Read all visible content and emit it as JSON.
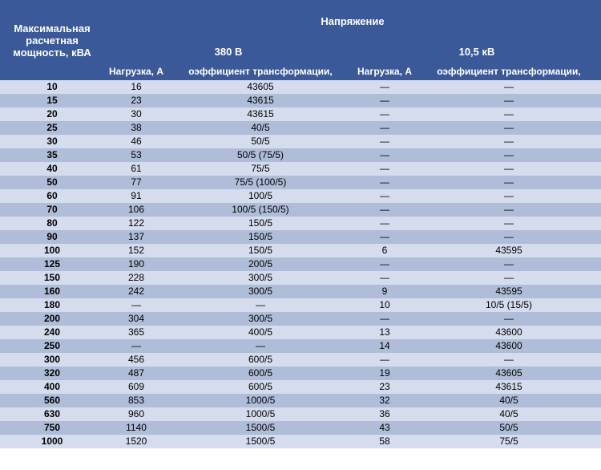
{
  "headers": {
    "power": "Максимальная расчетная мощность, кВА",
    "voltage": "Напряжение",
    "v380": "380 В",
    "v10_5": "10,5 кВ",
    "load": "Нагрузка, А",
    "coef": "оэффициент трансформации,"
  },
  "colors": {
    "header_bg": "#3b5998",
    "header_text": "#ffffff",
    "row_light": "#d4dced",
    "row_dark": "#b0bdd9",
    "text": "#000000"
  },
  "rows": [
    {
      "power": "10",
      "load380": "16",
      "coef380": "43605",
      "load10": "—",
      "coef10": "—"
    },
    {
      "power": "15",
      "load380": "23",
      "coef380": "43615",
      "load10": "—",
      "coef10": "—"
    },
    {
      "power": "20",
      "load380": "30",
      "coef380": "43615",
      "load10": "—",
      "coef10": "—"
    },
    {
      "power": "25",
      "load380": "38",
      "coef380": "40/5",
      "load10": "—",
      "coef10": "—"
    },
    {
      "power": "30",
      "load380": "46",
      "coef380": "50/5",
      "load10": "—",
      "coef10": "—"
    },
    {
      "power": "35",
      "load380": "53",
      "coef380": "50/5 (75/5)",
      "load10": "—",
      "coef10": "—"
    },
    {
      "power": "40",
      "load380": "61",
      "coef380": "75/5",
      "load10": "—",
      "coef10": "—"
    },
    {
      "power": "50",
      "load380": "77",
      "coef380": "75/5 (100/5)",
      "load10": "—",
      "coef10": "—"
    },
    {
      "power": "60",
      "load380": "91",
      "coef380": "100/5",
      "load10": "—",
      "coef10": "—"
    },
    {
      "power": "70",
      "load380": "106",
      "coef380": "100/5 (150/5)",
      "load10": "—",
      "coef10": "—"
    },
    {
      "power": "80",
      "load380": "122",
      "coef380": "150/5",
      "load10": "—",
      "coef10": "—"
    },
    {
      "power": "90",
      "load380": "137",
      "coef380": "150/5",
      "load10": "—",
      "coef10": "—"
    },
    {
      "power": "100",
      "load380": "152",
      "coef380": "150/5",
      "load10": "6",
      "coef10": "43595"
    },
    {
      "power": "125",
      "load380": "190",
      "coef380": "200/5",
      "load10": "—",
      "coef10": "—"
    },
    {
      "power": "150",
      "load380": "228",
      "coef380": "300/5",
      "load10": "—",
      "coef10": "—"
    },
    {
      "power": "160",
      "load380": "242",
      "coef380": "300/5",
      "load10": "9",
      "coef10": "43595"
    },
    {
      "power": "180",
      "load380": "—",
      "coef380": "—",
      "load10": "10",
      "coef10": "10/5 (15/5)"
    },
    {
      "power": "200",
      "load380": "304",
      "coef380": "300/5",
      "load10": "—",
      "coef10": "—"
    },
    {
      "power": "240",
      "load380": "365",
      "coef380": "400/5",
      "load10": "13",
      "coef10": "43600"
    },
    {
      "power": "250",
      "load380": "—",
      "coef380": "—",
      "load10": "14",
      "coef10": "43600"
    },
    {
      "power": "300",
      "load380": "456",
      "coef380": "600/5",
      "load10": "—",
      "coef10": "—"
    },
    {
      "power": "320",
      "load380": "487",
      "coef380": "600/5",
      "load10": "19",
      "coef10": "43605"
    },
    {
      "power": "400",
      "load380": "609",
      "coef380": "600/5",
      "load10": "23",
      "coef10": "43615"
    },
    {
      "power": "560",
      "load380": "853",
      "coef380": "1000/5",
      "load10": "32",
      "coef10": "40/5"
    },
    {
      "power": "630",
      "load380": "960",
      "coef380": "1000/5",
      "load10": "36",
      "coef10": "40/5"
    },
    {
      "power": "750",
      "load380": "1140",
      "coef380": "1500/5",
      "load10": "43",
      "coef10": "50/5"
    },
    {
      "power": "1000",
      "load380": "1520",
      "coef380": "1500/5",
      "load10": "58",
      "coef10": "75/5"
    }
  ]
}
